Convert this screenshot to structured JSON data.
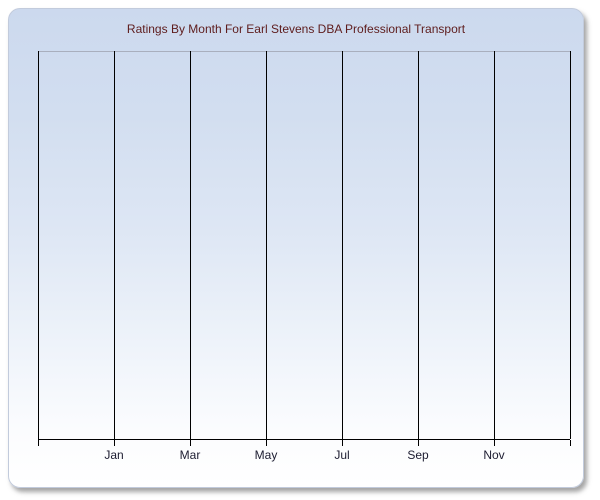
{
  "window": {
    "background_color": "#ffffff"
  },
  "card": {
    "title": "Ratings By Month For Earl Stevens DBA Professional Transport",
    "title_color": "#5e1c1c",
    "background_top_color": "#ccd9ee",
    "background_bottom_color": "#ffffff",
    "border_color": "#c2cbdc"
  },
  "chart_data": {
    "type": "line",
    "title": "Ratings By Month For Earl Stevens DBA Professional Transport",
    "empty": true,
    "series": [],
    "x_axis": {
      "tick_labels": [
        "Jan",
        "Mar",
        "May",
        "Jul",
        "Sep",
        "Nov"
      ],
      "gridline_count": 8,
      "labeled_gridline_indexes": [
        1,
        2,
        3,
        4,
        5,
        6
      ]
    },
    "y_axis": {
      "tick_labels": [],
      "label": ""
    },
    "grid": "vertical-only",
    "legend": "none",
    "colors": {
      "gridline": "#000000",
      "axis_line": "#000000",
      "plot_top_border": "#a9afbe",
      "label": "#1c1c30"
    }
  }
}
